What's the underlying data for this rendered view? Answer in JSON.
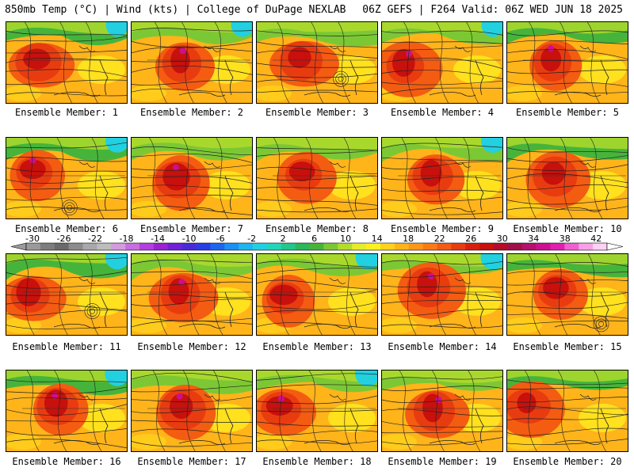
{
  "header": {
    "left": "850mb Temp (°C) | Wind (kts) | College of DuPage NEXLAB",
    "right": "06Z GEFS | F264 Valid: 06Z WED JUN 18 2025"
  },
  "panels": [
    {
      "label": "Ensemble Member: 1"
    },
    {
      "label": "Ensemble Member: 2"
    },
    {
      "label": "Ensemble Member: 3"
    },
    {
      "label": "Ensemble Member: 4"
    },
    {
      "label": "Ensemble Member: 5"
    },
    {
      "label": "Ensemble Member: 6"
    },
    {
      "label": "Ensemble Member: 7"
    },
    {
      "label": "Ensemble Member: 8"
    },
    {
      "label": "Ensemble Member: 9"
    },
    {
      "label": "Ensemble Member: 10"
    },
    {
      "label": "Ensemble Member: 11"
    },
    {
      "label": "Ensemble Member: 12"
    },
    {
      "label": "Ensemble Member: 13"
    },
    {
      "label": "Ensemble Member: 14"
    },
    {
      "label": "Ensemble Member: 15"
    },
    {
      "label": "Ensemble Member: 16"
    },
    {
      "label": "Ensemble Member: 17"
    },
    {
      "label": "Ensemble Member: 18"
    },
    {
      "label": "Ensemble Member: 19"
    },
    {
      "label": "Ensemble Member: 20"
    }
  ],
  "colorbar": {
    "ticks": [
      "-30",
      "-26",
      "-22",
      "-18",
      "-14",
      "-10",
      "-6",
      "-2",
      "2",
      "6",
      "10",
      "14",
      "18",
      "22",
      "26",
      "30",
      "34",
      "38",
      "42"
    ],
    "colors": [
      "#9a9a9a",
      "#7d7d7d",
      "#6a6a6a",
      "#8c8c8c",
      "#a8a8a8",
      "#bdbdbd",
      "#d39be0",
      "#c86ee0",
      "#b23ee0",
      "#9a22d0",
      "#7020d8",
      "#4a2ad8",
      "#2a3ee8",
      "#1e66f0",
      "#1c90f5",
      "#20b6f0",
      "#22d0e0",
      "#22d6b8",
      "#20c88a",
      "#2ab85a",
      "#46b43a",
      "#7cc834",
      "#b4dc2c",
      "#e6ec2a",
      "#fff020",
      "#ffd21c",
      "#ffb41a",
      "#ff961a",
      "#fc7a16",
      "#f45c12",
      "#e83c10",
      "#d8200e",
      "#c8100c",
      "#b40c2a",
      "#a01048",
      "#b4106c",
      "#cc1090",
      "#e020b0",
      "#f060d0",
      "#f8a0e6",
      "#fcd2f4"
    ]
  }
}
